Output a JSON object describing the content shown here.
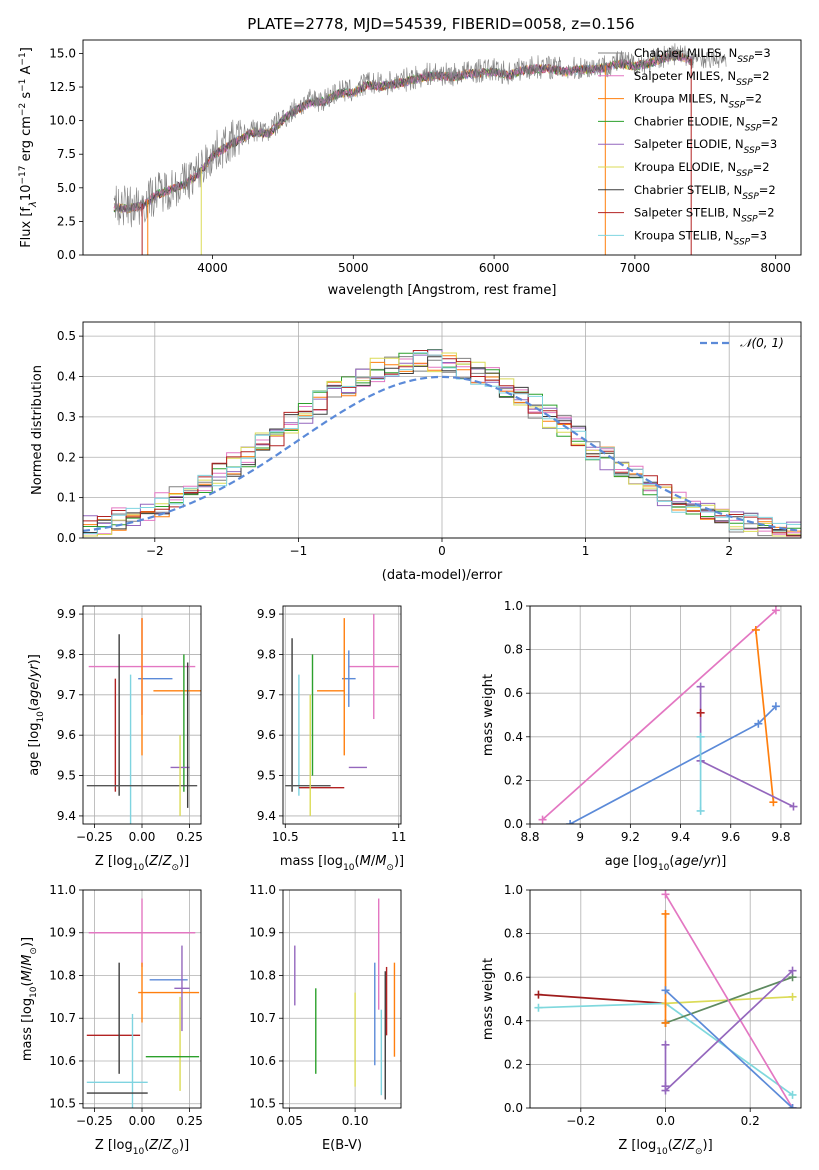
{
  "figure_title": "PLATE=2778, MJD=54539, FIBERID=0058, z=0.156",
  "colors": {
    "chabrier_miles": "#808080",
    "salpeter_miles": "#e377c2",
    "kroupa_miles": "#ff7f0e",
    "chabrier_elodie": "#2ca02c",
    "salpeter_elodie": "#9467bd",
    "kroupa_elodie": "#dbdb57",
    "chabrier_stelib": "#3d3d3d",
    "salpeter_stelib": "#b22222",
    "kroupa_stelib": "#7fd4e0",
    "kroupa_trace": "#e8782a",
    "blue": "#5b8ad8",
    "purple": "#9b30ae",
    "pink": "#e57fb8",
    "green": "#5e8a60",
    "yellow": "#d8ec4e",
    "cyan": "#7fd8dd",
    "darkred": "#9e1b1b",
    "gray": "#555555"
  },
  "chart_data": [
    {
      "id": "spectrum",
      "type": "line",
      "title": "PLATE=2778, MJD=54539, FIBERID=0058, z=0.156",
      "xlabel": "wavelength [Angstrom, rest frame]",
      "ylabel": "Flux [f_λ 10^-17 erg cm^-2 s^-1 A^-1]",
      "xlim": [
        3080,
        8180
      ],
      "ylim": [
        0,
        16
      ],
      "xticks": [
        4000,
        5000,
        6000,
        7000,
        8000
      ],
      "yticks": [
        0.0,
        2.5,
        5.0,
        7.5,
        10.0,
        12.5,
        15.0
      ],
      "x": [
        3300,
        3400,
        3500,
        3600,
        3700,
        3800,
        3900,
        4000,
        4100,
        4200,
        4300,
        4400,
        4500,
        4600,
        4700,
        4800,
        4900,
        5000,
        5100,
        5200,
        5300,
        5400,
        5500,
        5600,
        5700,
        5800,
        5900,
        6000,
        6100,
        6200,
        6300,
        6400,
        6500,
        6600,
        6700,
        6800,
        6900,
        7000,
        7100,
        7200,
        7300,
        7400
      ],
      "data_flux": [
        3.7,
        3.6,
        3.8,
        4.6,
        5.0,
        5.4,
        6.2,
        7.5,
        8.2,
        8.8,
        9.3,
        9.2,
        10.2,
        11.0,
        11.5,
        11.6,
        12.2,
        12.2,
        12.8,
        12.7,
        12.9,
        13.1,
        13.4,
        13.5,
        13.4,
        13.6,
        13.7,
        13.8,
        13.5,
        13.9,
        14.0,
        14.0,
        13.8,
        13.9,
        14.0,
        14.1,
        14.4,
        14.2,
        14.4,
        14.8,
        15.0,
        14.6
      ],
      "legend": [
        {
          "label": "Chabrier MILES, N_SSP=3",
          "color": "#808080"
        },
        {
          "label": "Salpeter MILES, N_SSP=2",
          "color": "#e377c2"
        },
        {
          "label": "Kroupa MILES, N_SSP=2",
          "color": "#ff7f0e"
        },
        {
          "label": "Chabrier ELODIE, N_SSP=2",
          "color": "#2ca02c"
        },
        {
          "label": "Salpeter ELODIE, N_SSP=3",
          "color": "#9467bd"
        },
        {
          "label": "Kroupa ELODIE, N_SSP=2",
          "color": "#dbdb57"
        },
        {
          "label": "Chabrier STELIB, N_SSP=2",
          "color": "#3d3d3d"
        },
        {
          "label": "Salpeter STELIB, N_SSP=2",
          "color": "#b22222"
        },
        {
          "label": "Kroupa STELIB, N_SSP=3",
          "color": "#7fd4e0"
        }
      ],
      "legend_text": [
        [
          "Chabrier MILES, N",
          "SSP",
          "=3"
        ],
        [
          "Salpeter MILES, N",
          "SSP",
          "=2"
        ],
        [
          "Kroupa MILES, N",
          "SSP",
          "=2"
        ],
        [
          "Chabrier ELODIE, N",
          "SSP",
          "=2"
        ],
        [
          "Salpeter ELODIE, N",
          "SSP",
          "=3"
        ],
        [
          "Kroupa ELODIE, N",
          "SSP",
          "=2"
        ],
        [
          "Chabrier STELIB, N",
          "SSP",
          "=2"
        ],
        [
          "Salpeter STELIB, N",
          "SSP",
          "=2"
        ],
        [
          "Kroupa STELIB, N",
          "SSP",
          "=3"
        ]
      ],
      "legend_location": "upper right"
    },
    {
      "id": "residuals",
      "type": "area",
      "xlabel": "(data-model)/error",
      "ylabel": "Normed distribution",
      "xlim": [
        -2.5,
        2.5
      ],
      "ylim": [
        0,
        0.535
      ],
      "xticks": [
        -2,
        -1,
        0,
        1,
        2
      ],
      "yticks": [
        0.0,
        0.1,
        0.2,
        0.3,
        0.4,
        0.5
      ],
      "xtick_labels": [
        "−2",
        "−1",
        "0",
        "1",
        "2"
      ],
      "bin_width": 0.1,
      "histogram_bins_from": -2.5,
      "series_colors": [
        "#808080",
        "#e377c2",
        "#ff7f0e",
        "#2ca02c",
        "#9467bd",
        "#dbdb57",
        "#3d3d3d",
        "#b22222",
        "#7fd4e0"
      ],
      "histogram_reference": [
        0.02,
        0.03,
        0.04,
        0.05,
        0.06,
        0.07,
        0.08,
        0.09,
        0.1,
        0.12,
        0.13,
        0.15,
        0.17,
        0.19,
        0.21,
        0.22,
        0.24,
        0.26,
        0.28,
        0.3,
        0.31,
        0.33,
        0.35,
        0.37,
        0.39,
        0.41,
        0.42,
        0.43,
        0.45,
        0.44,
        0.41,
        0.4,
        0.39,
        0.38,
        0.37,
        0.35,
        0.34,
        0.33,
        0.32,
        0.3,
        0.28,
        0.26,
        0.24,
        0.22,
        0.2,
        0.18,
        0.16,
        0.14,
        0.12,
        0.11,
        0.1,
        0.09,
        0.08,
        0.07,
        0.07,
        0.06,
        0.06,
        0.05,
        0.05,
        0.04,
        0.04,
        0.03,
        0.03,
        0.03,
        0.03,
        0.02,
        0.02,
        0.02,
        0.02,
        0.02,
        0.02,
        0.02,
        0.01,
        0.01,
        0.01,
        0.01,
        0.01,
        0.01,
        0.01,
        0.01
      ],
      "normal_curve": {
        "label": "𝒩(0, 1)",
        "color": "#5b8ad8",
        "style": "dashed"
      },
      "legend_location": "upper right"
    },
    {
      "id": "z-age",
      "type": "scatter",
      "xlabel": "Z [log10(Z/Z⊙)]",
      "ylabel": "age [log10(age/yr)]",
      "xlim": [
        -0.31,
        0.31
      ],
      "ylim": [
        9.38,
        9.92
      ],
      "xticks": [
        -0.25,
        0.0,
        0.25
      ],
      "xtick_labels": [
        "−0.25",
        "0.00",
        "0.25"
      ],
      "yticks": [
        9.4,
        9.5,
        9.6,
        9.7,
        9.8,
        9.9
      ],
      "errorbars": [
        {
          "x": 0.0,
          "y": 9.77,
          "xerr": 0.28,
          "yerr": 0.12,
          "color": "#e377c2"
        },
        {
          "x": 0.07,
          "y": 9.74,
          "xerr": 0.09,
          "yerr": 0.0,
          "color": "#5b8ad8"
        },
        {
          "x": 0.19,
          "y": 9.71,
          "xerr": 0.13,
          "yerr": 0.0,
          "color": "#ff7f0e"
        },
        {
          "x": 0.0,
          "y": 9.72,
          "xerr": 0.0,
          "yerr": 0.17,
          "color": "#ff7f0e"
        },
        {
          "x": 0.22,
          "y": 9.63,
          "xerr": 0.0,
          "yerr": 0.17,
          "color": "#2ca02c"
        },
        {
          "x": 0.2,
          "y": 9.52,
          "xerr": 0.05,
          "yerr": 0.0,
          "color": "#9467bd"
        },
        {
          "x": -0.06,
          "y": 9.56,
          "xerr": 0.0,
          "yerr": 0.19,
          "color": "#7fd4e0"
        },
        {
          "x": -0.12,
          "y": 9.65,
          "xerr": 0.0,
          "yerr": 0.2,
          "color": "#3d3d3d"
        },
        {
          "x": -0.14,
          "y": 9.6,
          "xerr": 0.0,
          "yerr": 0.14,
          "color": "#b22222"
        },
        {
          "x": 0.0,
          "y": 9.475,
          "xerr": 0.29,
          "yerr": 0.0,
          "color": "#555555"
        },
        {
          "x": 0.2,
          "y": 9.5,
          "xerr": 0.0,
          "yerr": 0.1,
          "color": "#dbdb57"
        },
        {
          "x": 0.24,
          "y": 9.6,
          "xerr": 0.0,
          "yerr": 0.18,
          "color": "#3d3d3d"
        }
      ]
    },
    {
      "id": "mass-age",
      "type": "scatter",
      "xlabel": "mass [log10(M/M⊙)]",
      "ylabel": "",
      "xlim": [
        10.49,
        11.01
      ],
      "ylim": [
        9.38,
        9.92
      ],
      "xticks": [
        10.5,
        11.0
      ],
      "yticks": [
        9.4,
        9.5,
        9.6,
        9.7,
        9.8,
        9.9
      ],
      "errorbars": [
        {
          "x": 10.89,
          "y": 9.77,
          "xerr": 0.11,
          "yerr": 0.13,
          "color": "#e377c2"
        },
        {
          "x": 10.78,
          "y": 9.74,
          "xerr": 0.03,
          "yerr": 0.07,
          "color": "#5b8ad8"
        },
        {
          "x": 10.7,
          "y": 9.71,
          "xerr": 0.06,
          "yerr": 0.0,
          "color": "#ff7f0e"
        },
        {
          "x": 10.76,
          "y": 9.72,
          "xerr": 0.0,
          "yerr": 0.17,
          "color": "#ff7f0e"
        },
        {
          "x": 10.62,
          "y": 9.65,
          "xerr": 0.0,
          "yerr": 0.15,
          "color": "#2ca02c"
        },
        {
          "x": 10.82,
          "y": 9.52,
          "xerr": 0.04,
          "yerr": 0.0,
          "color": "#9467bd"
        },
        {
          "x": 10.56,
          "y": 9.6,
          "xerr": 0.0,
          "yerr": 0.15,
          "color": "#7fd4e0"
        },
        {
          "x": 10.53,
          "y": 9.65,
          "xerr": 0.0,
          "yerr": 0.19,
          "color": "#3d3d3d"
        },
        {
          "x": 10.6,
          "y": 9.475,
          "xerr": 0.1,
          "yerr": 0.0,
          "color": "#555555"
        },
        {
          "x": 10.66,
          "y": 9.47,
          "xerr": 0.1,
          "yerr": 0.0,
          "color": "#b22222"
        },
        {
          "x": 10.61,
          "y": 9.55,
          "xerr": 0.0,
          "yerr": 0.15,
          "color": "#dbdb57"
        }
      ]
    },
    {
      "id": "age-weight",
      "type": "line",
      "xlabel": "age [log10(age/yr)]",
      "ylabel": "mass weight",
      "xlim": [
        8.8,
        9.88
      ],
      "ylim": [
        0,
        1.0
      ],
      "xticks": [
        8.8,
        9.0,
        9.2,
        9.4,
        9.6,
        9.8
      ],
      "yticks": [
        0.0,
        0.2,
        0.4,
        0.6,
        0.8,
        1.0
      ],
      "series": [
        {
          "color": "#e377c2",
          "x": [
            8.85,
            9.78
          ],
          "y": [
            0.02,
            0.98
          ]
        },
        {
          "color": "#5b8ad8",
          "x": [
            8.96,
            9.71,
            9.78
          ],
          "y": [
            0.0,
            0.46,
            0.54
          ]
        },
        {
          "color": "#ff7f0e",
          "x": [
            9.7,
            9.77
          ],
          "y": [
            0.89,
            0.1
          ]
        },
        {
          "color": "#9467bd",
          "x": [
            9.48,
            9.85
          ],
          "y": [
            0.29,
            0.08
          ]
        },
        {
          "color": "#9467bd",
          "x": [
            9.48,
            9.48
          ],
          "y": [
            0.29,
            0.63
          ]
        },
        {
          "color": "#7fd4e0",
          "x": [
            9.48,
            9.48
          ],
          "y": [
            0.06,
            0.4
          ]
        },
        {
          "color": "#b22222",
          "x": [
            9.48
          ],
          "y": [
            0.51
          ]
        }
      ]
    },
    {
      "id": "z-mass",
      "type": "scatter",
      "xlabel": "Z [log10(Z/Z⊙)]",
      "ylabel": "mass [log10(M/M⊙)]",
      "xlim": [
        -0.31,
        0.31
      ],
      "ylim": [
        10.49,
        11.0
      ],
      "xticks": [
        -0.25,
        0.0,
        0.25
      ],
      "xtick_labels": [
        "−0.25",
        "0.00",
        "0.25"
      ],
      "yticks": [
        10.5,
        10.6,
        10.7,
        10.8,
        10.9,
        11.0
      ],
      "errorbars": [
        {
          "x": 0.0,
          "y": 10.9,
          "xerr": 0.28,
          "yerr": 0.08,
          "color": "#e377c2"
        },
        {
          "x": 0.14,
          "y": 10.79,
          "xerr": 0.1,
          "yerr": 0.0,
          "color": "#5b8ad8"
        },
        {
          "x": 0.14,
          "y": 10.76,
          "xerr": 0.16,
          "yerr": 0.0,
          "color": "#ff7f0e"
        },
        {
          "x": 0.0,
          "y": 10.76,
          "xerr": 0.0,
          "yerr": 0.07,
          "color": "#ff7f0e"
        },
        {
          "x": 0.21,
          "y": 10.77,
          "xerr": 0.04,
          "yerr": 0.1,
          "color": "#9467bd"
        },
        {
          "x": -0.15,
          "y": 10.66,
          "xerr": 0.14,
          "yerr": 0.0,
          "color": "#b22222"
        },
        {
          "x": -0.12,
          "y": 10.7,
          "xerr": 0.0,
          "yerr": 0.13,
          "color": "#3d3d3d"
        },
        {
          "x": -0.05,
          "y": 10.59,
          "xerr": 0.0,
          "yerr": 0.12,
          "color": "#7fd4e0"
        },
        {
          "x": 0.2,
          "y": 10.64,
          "xerr": 0.0,
          "yerr": 0.11,
          "color": "#dbdb57"
        },
        {
          "x": 0.16,
          "y": 10.61,
          "xerr": 0.14,
          "yerr": 0.0,
          "color": "#2ca02c"
        },
        {
          "x": 0.0,
          "y": 10.61,
          "xerr": 0.0,
          "yerr": 0.0,
          "color": "#dbdb57"
        },
        {
          "x": -0.13,
          "y": 10.55,
          "xerr": 0.16,
          "yerr": 0.0,
          "color": "#7fd4e0"
        },
        {
          "x": -0.13,
          "y": 10.525,
          "xerr": 0.16,
          "yerr": 0.0,
          "color": "#3d3d3d"
        }
      ]
    },
    {
      "id": "ebv-mass",
      "type": "scatter",
      "xlabel": "E(B-V)",
      "ylabel": "",
      "xlim": [
        0.045,
        0.135
      ],
      "ylim": [
        10.49,
        11.0
      ],
      "xticks": [
        0.05,
        0.1
      ],
      "xtick_labels": [
        "0.05",
        "0.10"
      ],
      "yticks": [
        10.5,
        10.6,
        10.7,
        10.8,
        10.9,
        11.0
      ],
      "errorbars": [
        {
          "x": 0.054,
          "y": 10.8,
          "xerr": 0.0,
          "yerr": 0.07,
          "color": "#9467bd"
        },
        {
          "x": 0.07,
          "y": 10.67,
          "xerr": 0.0,
          "yerr": 0.1,
          "color": "#2ca02c"
        },
        {
          "x": 0.1,
          "y": 10.65,
          "xerr": 0.0,
          "yerr": 0.11,
          "color": "#dbdb57"
        },
        {
          "x": 0.115,
          "y": 10.71,
          "xerr": 0.0,
          "yerr": 0.12,
          "color": "#5b8ad8"
        },
        {
          "x": 0.118,
          "y": 10.85,
          "xerr": 0.0,
          "yerr": 0.13,
          "color": "#e377c2"
        },
        {
          "x": 0.12,
          "y": 10.62,
          "xerr": 0.0,
          "yerr": 0.1,
          "color": "#7fd4e0"
        },
        {
          "x": 0.123,
          "y": 10.66,
          "xerr": 0.0,
          "yerr": 0.15,
          "color": "#3d3d3d"
        },
        {
          "x": 0.13,
          "y": 10.72,
          "xerr": 0.0,
          "yerr": 0.11,
          "color": "#ff7f0e"
        },
        {
          "x": 0.124,
          "y": 10.74,
          "xerr": 0.0,
          "yerr": 0.08,
          "color": "#b22222"
        }
      ]
    },
    {
      "id": "z-weight",
      "type": "line",
      "xlabel": "Z [log10(Z/Z⊙)]",
      "ylabel": "mass weight",
      "xlim": [
        -0.32,
        0.32
      ],
      "ylim": [
        0,
        1.0
      ],
      "xticks": [
        -0.2,
        0.0,
        0.2
      ],
      "xtick_labels": [
        "−0.2",
        "0.0",
        "0.2"
      ],
      "yticks": [
        0.0,
        0.2,
        0.4,
        0.6,
        0.8,
        1.0
      ],
      "series": [
        {
          "color": "#9e1b1b",
          "x": [
            -0.3,
            0.0
          ],
          "y": [
            0.52,
            0.48
          ]
        },
        {
          "color": "#7fd8dd",
          "x": [
            -0.3,
            0.0,
            0.3
          ],
          "y": [
            0.46,
            0.48,
            0.06
          ]
        },
        {
          "color": "#dbdb57",
          "x": [
            0.0,
            0.3
          ],
          "y": [
            0.48,
            0.51
          ]
        },
        {
          "color": "#5e8a60",
          "x": [
            0.0,
            0.3
          ],
          "y": [
            0.39,
            0.6
          ]
        },
        {
          "color": "#ff7f0e",
          "x": [
            0.0,
            0.0
          ],
          "y": [
            0.39,
            0.89
          ]
        },
        {
          "color": "#e377c2",
          "x": [
            0.0,
            0.3
          ],
          "y": [
            0.98,
            0.0
          ]
        },
        {
          "color": "#5b8ad8",
          "x": [
            0.0,
            0.3
          ],
          "y": [
            0.54,
            0.0
          ]
        },
        {
          "color": "#9467bd",
          "x": [
            0.0,
            0.0,
            0.3
          ],
          "y": [
            0.29,
            0.08,
            0.63
          ]
        },
        {
          "color": "#9467bd",
          "x": [
            0.0
          ],
          "y": [
            0.1
          ]
        }
      ]
    }
  ]
}
